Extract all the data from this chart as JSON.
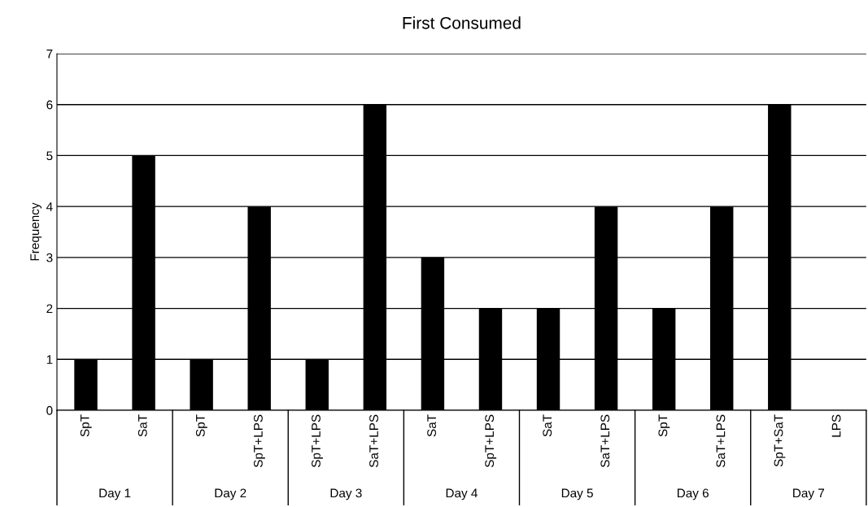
{
  "chart_data": {
    "type": "bar",
    "title": "First Consumed",
    "ylabel": "Frequency",
    "categories": [
      "SpT",
      "SaT",
      "SpT",
      "SpT+LPS",
      "SpT+LPS",
      "SaT+LPS",
      "SaT",
      "SpT+LPS",
      "SaT",
      "SaT+LPS",
      "SpT",
      "SaT+LPS",
      "SpT+SaT",
      "LPS"
    ],
    "values": [
      1,
      5,
      1,
      4,
      1,
      6,
      3,
      2,
      2,
      4,
      2,
      4,
      6,
      0
    ],
    "color": "#000000",
    "annotations": [
      "Day 1",
      "Day 2",
      "Day 3",
      "Day 4",
      "Day 5",
      "Day 6",
      "Day 7"
    ],
    "ylim": [
      0,
      7
    ],
    "yticks": [
      0,
      1,
      2,
      3,
      4,
      5,
      6,
      7
    ],
    "grid": "y"
  }
}
